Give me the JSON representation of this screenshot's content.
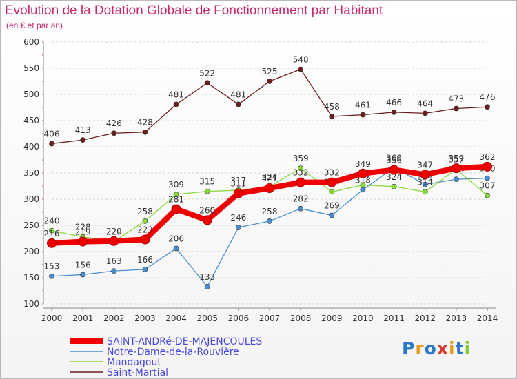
{
  "title": "Evolution de la Dotation Globale de Fonctionnement par Habitant",
  "subtitle": "(en € et par an)",
  "logo_text": "Proxiti",
  "chart_data": {
    "type": "line",
    "title": "Evolution de la Dotation Globale de Fonctionnement par Habitant",
    "subtitle": "(en € et par an)",
    "xlabel": "",
    "ylabel": "",
    "x": [
      2000,
      2001,
      2002,
      2003,
      2004,
      2005,
      2006,
      2007,
      2008,
      2009,
      2010,
      2011,
      2012,
      2013,
      2014
    ],
    "ylim": [
      100,
      600
    ],
    "yticks": [
      100,
      150,
      200,
      250,
      300,
      350,
      400,
      450,
      500,
      550,
      600
    ],
    "grid": "horizontal dashed",
    "legend_position": "bottom-left",
    "series": [
      {
        "name": "SAINT-ANDRé-DE-MAJENCOULES",
        "color": "#ee0000",
        "values": [
          216,
          219,
          220,
          223,
          281,
          260,
          311,
          321,
          332,
          332,
          349,
          356,
          347,
          359,
          362
        ]
      },
      {
        "name": "Notre-Dame-de-la-Rouvière",
        "color": "#4a8ed0",
        "values": [
          153,
          156,
          163,
          166,
          206,
          133,
          246,
          258,
          282,
          269,
          318,
          360,
          328,
          338,
          340
        ]
      },
      {
        "name": "Mandagout",
        "color": "#86d83a",
        "values": [
          240,
          228,
          219,
          258,
          309,
          315,
          317,
          324,
          359,
          314,
          327,
          324,
          314,
          357,
          307
        ]
      },
      {
        "name": "Saint-Martial",
        "color": "#6b1e1e",
        "values": [
          406,
          413,
          426,
          428,
          481,
          522,
          481,
          525,
          548,
          458,
          461,
          466,
          464,
          473,
          476
        ]
      }
    ]
  }
}
